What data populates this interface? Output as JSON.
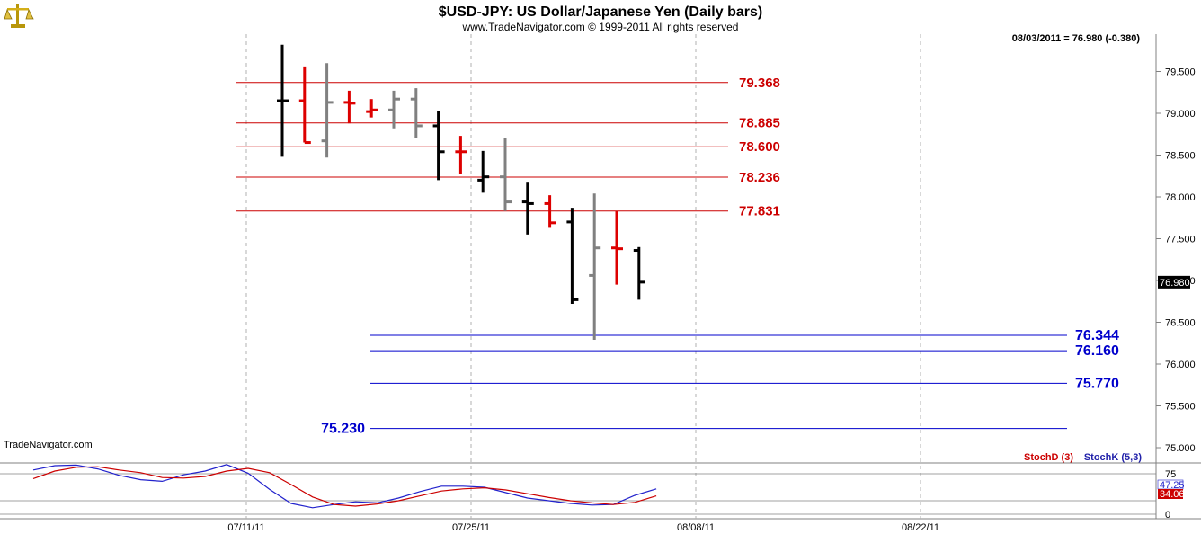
{
  "header": {
    "title": "$USD-JPY:  US Dollar/Japanese Yen  (Daily bars)",
    "subtitle": "www.TradeNavigator.com © 1999-2011 All rights reserved",
    "last_info": "08/03/2011 = 76.980 (-0.380)",
    "watermark": "TradeNavigator.com",
    "logo_icon": "scales-logo-icon"
  },
  "colors": {
    "up_bar": "#000000",
    "down_bar": "#dd0000",
    "gray_bar": "#808080",
    "resistance": "#cc0000",
    "support": "#0000cc",
    "stoch_d": "#cc0000",
    "stoch_k": "#2222cc",
    "grid": "#b0b0b0"
  },
  "chart_data": [
    {
      "type": "ohlc",
      "title": "$USD-JPY:  US Dollar/Japanese Yen  (Daily bars)",
      "x_ticks": [
        "07/11/11",
        "07/25/11",
        "08/08/11",
        "08/22/11"
      ],
      "y_ticks": [
        "79.500",
        "79.000",
        "78.500",
        "78.000",
        "77.500",
        "77.000",
        "76.500",
        "76.000",
        "75.500",
        "75.000"
      ],
      "ylim": [
        74.9,
        79.8
      ],
      "last_price_label": "76.980",
      "bars": [
        {
          "i": 0,
          "o": 79.15,
          "h": 79.82,
          "l": 78.48,
          "c": 79.15,
          "color": "black"
        },
        {
          "i": 1,
          "o": 79.15,
          "h": 79.56,
          "l": 78.65,
          "c": 78.65,
          "color": "red"
        },
        {
          "i": 2,
          "o": 78.67,
          "h": 79.6,
          "l": 78.47,
          "c": 79.13,
          "color": "gray"
        },
        {
          "i": 3,
          "o": 79.13,
          "h": 79.27,
          "l": 78.88,
          "c": 79.12,
          "color": "red"
        },
        {
          "i": 4,
          "o": 79.02,
          "h": 79.17,
          "l": 78.95,
          "c": 79.04,
          "color": "red"
        },
        {
          "i": 5,
          "o": 79.04,
          "h": 79.27,
          "l": 78.82,
          "c": 79.17,
          "color": "gray"
        },
        {
          "i": 6,
          "o": 79.17,
          "h": 79.3,
          "l": 78.7,
          "c": 78.85,
          "color": "gray"
        },
        {
          "i": 7,
          "o": 78.85,
          "h": 79.03,
          "l": 78.2,
          "c": 78.54,
          "color": "black"
        },
        {
          "i": 8,
          "o": 78.54,
          "h": 78.73,
          "l": 78.27,
          "c": 78.54,
          "color": "red"
        },
        {
          "i": 9,
          "o": 78.2,
          "h": 78.55,
          "l": 78.05,
          "c": 78.24,
          "color": "black"
        },
        {
          "i": 10,
          "o": 78.24,
          "h": 78.7,
          "l": 77.83,
          "c": 77.94,
          "color": "gray"
        },
        {
          "i": 11,
          "o": 77.94,
          "h": 78.17,
          "l": 77.55,
          "c": 77.92,
          "color": "black"
        },
        {
          "i": 12,
          "o": 77.92,
          "h": 78.02,
          "l": 77.63,
          "c": 77.69,
          "color": "red"
        },
        {
          "i": 13,
          "o": 77.7,
          "h": 77.87,
          "l": 76.72,
          "c": 76.77,
          "color": "black"
        },
        {
          "i": 14,
          "o": 77.06,
          "h": 78.04,
          "l": 76.29,
          "c": 77.39,
          "color": "gray"
        },
        {
          "i": 15,
          "o": 77.39,
          "h": 77.83,
          "l": 76.95,
          "c": 77.38,
          "color": "red"
        },
        {
          "i": 16,
          "o": 77.36,
          "h": 77.4,
          "l": 76.77,
          "c": 76.98,
          "color": "black"
        }
      ],
      "resistance_levels": [
        {
          "value": 79.368,
          "label": "79.368"
        },
        {
          "value": 78.885,
          "label": "78.885"
        },
        {
          "value": 78.6,
          "label": "78.600"
        },
        {
          "value": 78.236,
          "label": "78.236"
        },
        {
          "value": 77.831,
          "label": "77.831"
        }
      ],
      "support_levels": [
        {
          "value": 76.344,
          "label": "76.344"
        },
        {
          "value": 76.16,
          "label": "76.160"
        },
        {
          "value": 75.77,
          "label": "75.770"
        },
        {
          "value": 75.23,
          "label": "75.230"
        }
      ]
    },
    {
      "type": "line",
      "legend": [
        {
          "name": "StochD (3)",
          "color": "#cc0000"
        },
        {
          "name": "StochK (5,3)",
          "color": "#2222cc"
        }
      ],
      "y_ticks": [
        "75",
        "0"
      ],
      "ylim": [
        0,
        100
      ],
      "last_values": {
        "stoch_k": "47.25",
        "stoch_d": "34.06"
      },
      "series": [
        {
          "name": "StochK (5,3)",
          "values": [
            82,
            90,
            91,
            84,
            72,
            64,
            61,
            73,
            80,
            92,
            76,
            46,
            20,
            12,
            18,
            23,
            21,
            30,
            42,
            52,
            52,
            50,
            40,
            30,
            25,
            20,
            17,
            18,
            35,
            47
          ]
        },
        {
          "name": "StochD (3)",
          "values": [
            66,
            80,
            87,
            88,
            82,
            77,
            68,
            67,
            70,
            80,
            85,
            77,
            55,
            32,
            18,
            15,
            19,
            25,
            34,
            43,
            47,
            49,
            45,
            38,
            31,
            25,
            21,
            18,
            22,
            34
          ]
        }
      ]
    }
  ]
}
